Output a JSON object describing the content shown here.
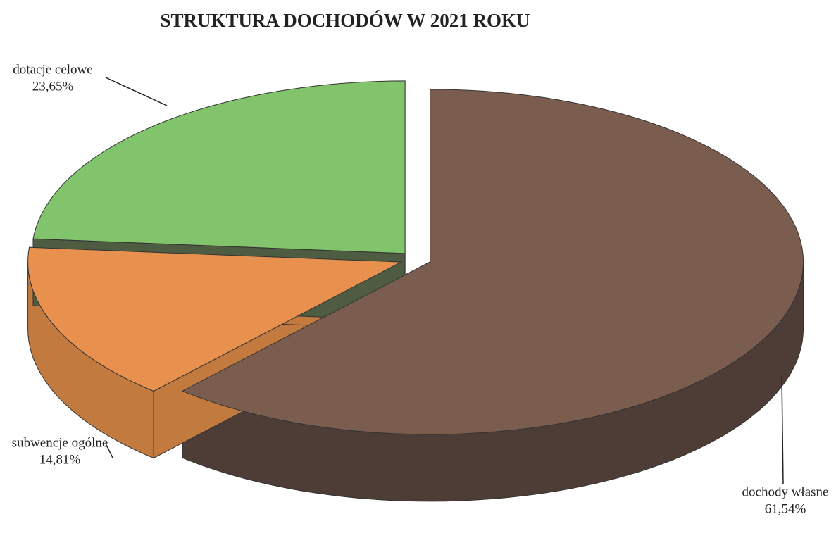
{
  "chart_data": {
    "type": "pie",
    "title": "STRUKTURA DOCHODÓW W 2021 ROKU",
    "categories": [
      "dochody własne",
      "subwencje ogólne",
      "dotacje celowe"
    ],
    "values": [
      61.54,
      14.81,
      23.65
    ],
    "value_labels": [
      "61,54%",
      "14,81%",
      "23,65%"
    ],
    "colors": [
      "#7b5d50",
      "#e8914f",
      "#82c46c"
    ]
  }
}
